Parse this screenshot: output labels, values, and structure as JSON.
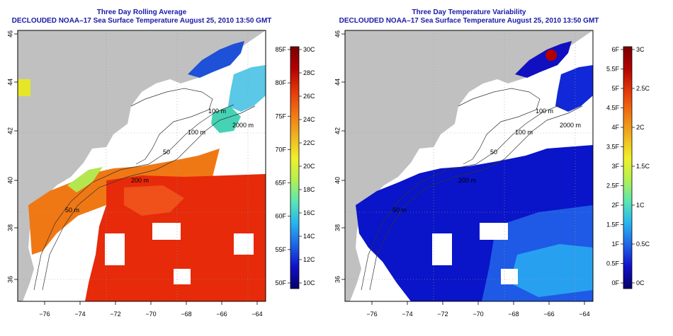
{
  "left_panel": {
    "title": "Three Day Rolling Average",
    "subtitle": "DECLOUDED NOAA–17 Sea Surface Temperature August 25, 2010 13:50 GMT",
    "x_ticks": [
      "−76",
      "−74",
      "−72",
      "−70",
      "−68",
      "−66",
      "−64"
    ],
    "y_ticks": [
      "36",
      "38",
      "40",
      "42",
      "44",
      "46"
    ],
    "contour_labels": [
      "100 m",
      "2000 m",
      "100 m",
      "50",
      "200 m",
      "50 m"
    ],
    "colorbar": {
      "celsius_labels": [
        "30C",
        "28C",
        "26C",
        "24C",
        "22C",
        "20C",
        "18C",
        "16C",
        "14C",
        "12C",
        "10C"
      ],
      "fahrenheit_labels": [
        "85F",
        "80F",
        "75F",
        "70F",
        "65F",
        "60F",
        "55F",
        "50F"
      ],
      "colors": [
        "#08006b",
        "#1010c8",
        "#1e64e6",
        "#28b4f0",
        "#5ae6b4",
        "#b4f050",
        "#f0f028",
        "#f0b41e",
        "#f07814",
        "#e63c0a",
        "#b40000",
        "#780000"
      ]
    }
  },
  "right_panel": {
    "title": "Three Day Temperature Variability",
    "subtitle": "DECLOUDED NOAA–17 Sea Surface Temperature August 25, 2010 13:50 GMT",
    "x_ticks": [
      "−76",
      "−74",
      "−72",
      "−70",
      "−68",
      "−66",
      "−64"
    ],
    "y_ticks": [
      "36",
      "38",
      "40",
      "42",
      "44",
      "46"
    ],
    "contour_labels": [
      "100 m",
      "2000 m",
      "100 m",
      "50",
      "200 m",
      "50 m"
    ],
    "colorbar": {
      "fahrenheit_labels": [
        "6F",
        "5.5F",
        "5F",
        "4.5F",
        "4F",
        "3.5F",
        "3F",
        "2.5F",
        "2F",
        "1.5F",
        "1F",
        "0.5F",
        "0F"
      ],
      "celsius_labels": [
        "3C",
        "2.5C",
        "2C",
        "1.5C",
        "1C",
        "0.5C",
        "0C"
      ],
      "colors": [
        "#08006b",
        "#1010c8",
        "#1e64e6",
        "#28b4f0",
        "#5ae6b4",
        "#b4f050",
        "#f0f028",
        "#f0b41e",
        "#f07814",
        "#e63c0a",
        "#b40000",
        "#780000"
      ]
    }
  },
  "colors": {
    "land": "#c0c0c0",
    "ocean_nodata": "#ffffff",
    "title": "#1a1aa8"
  }
}
